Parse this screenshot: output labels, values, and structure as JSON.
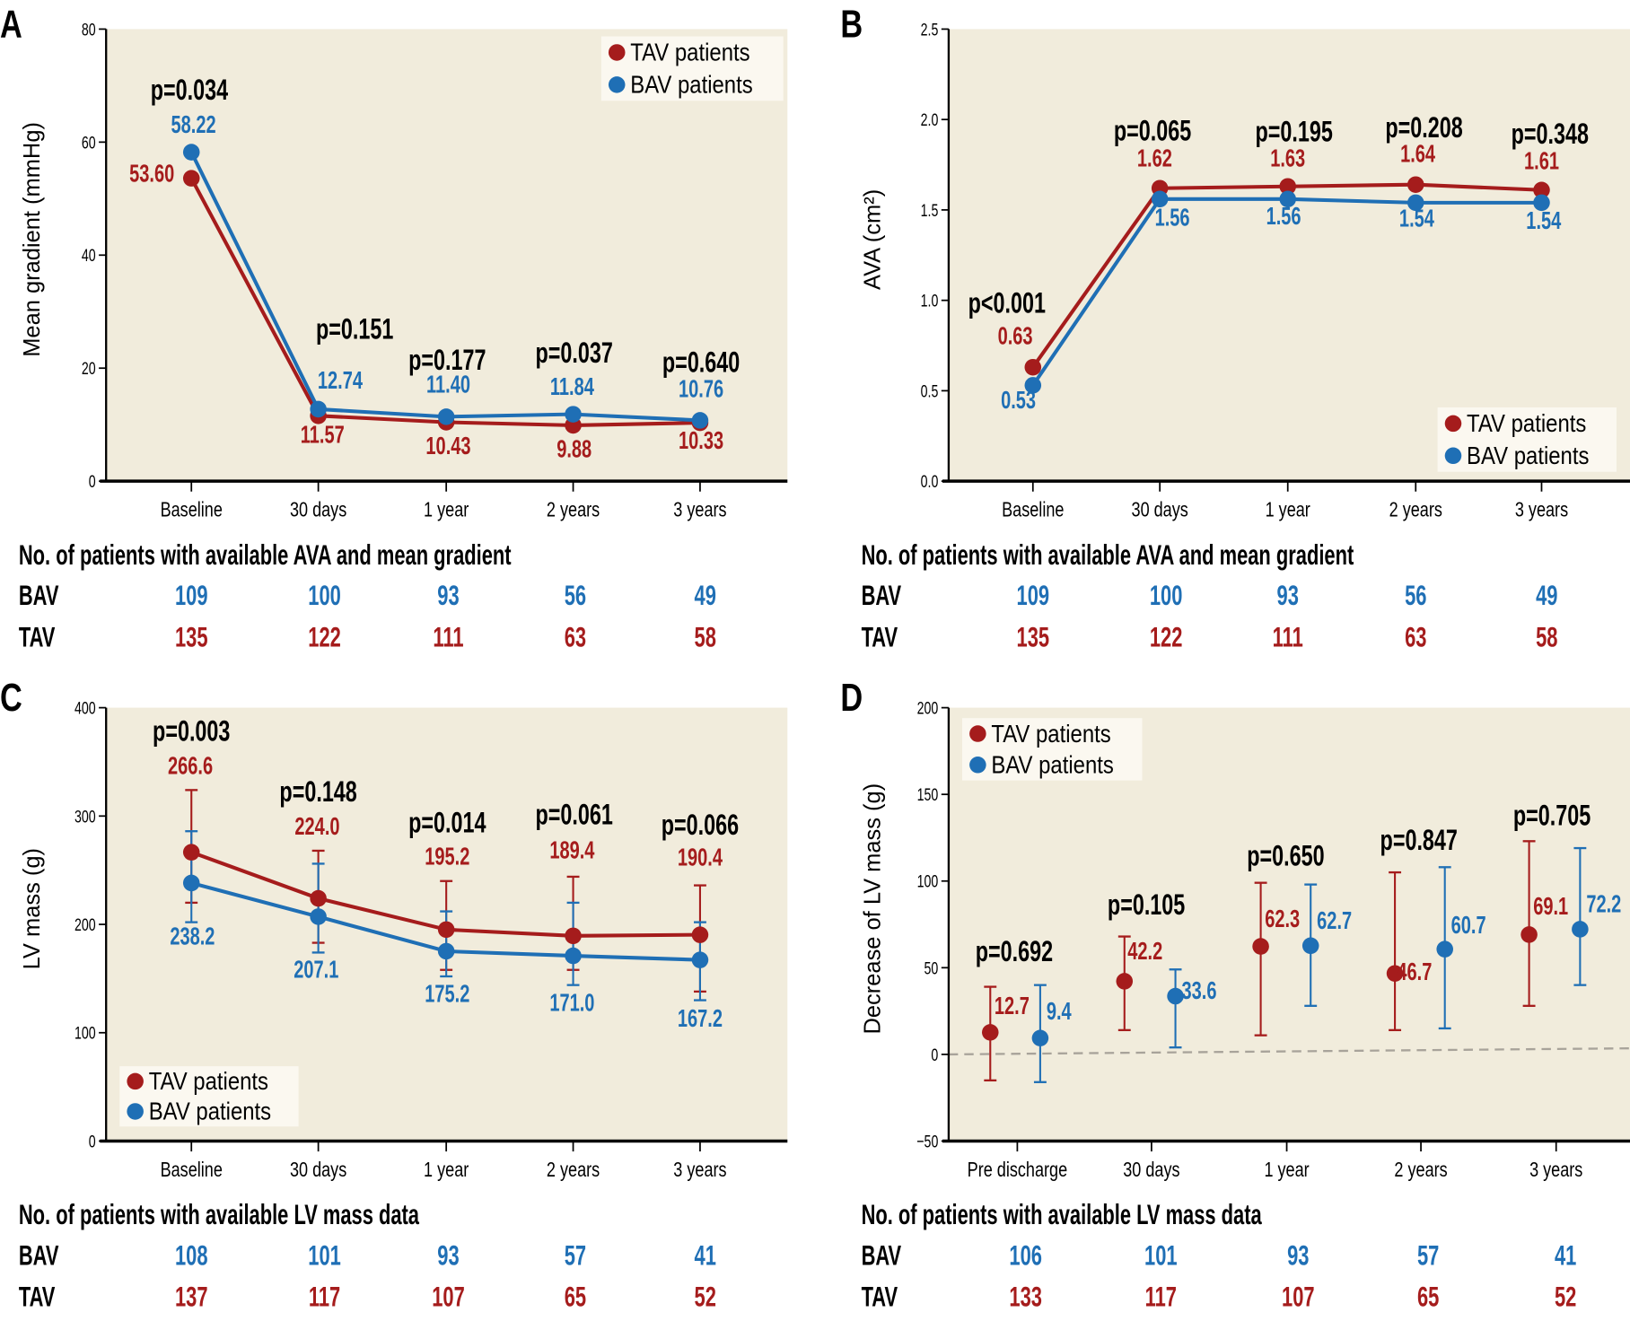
{
  "colors": {
    "tav": "#A51C1C",
    "bav": "#1F6FB5",
    "plot_bg": "#F1ECDC",
    "legend_bg": "#FBF8F0",
    "axis": "#000000",
    "zero_line": "#A8A39A",
    "text": "#000000"
  },
  "legend": {
    "tav_label": "TAV patients",
    "bav_label": "BAV patients"
  },
  "chart_data": [
    {
      "panel": "A",
      "type": "line",
      "title": "",
      "xlabel": "",
      "ylabel": "Mean gradient (mmHg)",
      "categories": [
        "Baseline",
        "30 days",
        "1 year",
        "2 years",
        "3 years"
      ],
      "ylim": [
        0,
        80
      ],
      "yticks": [
        0,
        20,
        40,
        60,
        80
      ],
      "ytick_labels": [
        "0",
        "20",
        "40",
        "60",
        "80"
      ],
      "legend_position": "top-right",
      "series": [
        {
          "name": "TAV patients",
          "key": "tav",
          "values": [
            53.6,
            11.57,
            10.43,
            9.88,
            10.33
          ],
          "labels": [
            "53.60",
            "11.57",
            "10.43",
            "9.88",
            "10.33"
          ]
        },
        {
          "name": "BAV patients",
          "key": "bav",
          "values": [
            58.22,
            12.74,
            11.4,
            11.84,
            10.76
          ],
          "labels": [
            "58.22",
            "12.74",
            "11.40",
            "11.84",
            "10.76"
          ]
        }
      ],
      "p_values": [
        "p=0.034",
        "p=0.151",
        "p=0.177",
        "p=0.037",
        "p=0.640"
      ],
      "table": {
        "title": "No. of patients with available AVA and mean gradient",
        "rows": [
          {
            "label": "BAV",
            "key": "bav",
            "values": [
              "109",
              "100",
              "93",
              "56",
              "49"
            ]
          },
          {
            "label": "TAV",
            "key": "tav",
            "values": [
              "135",
              "122",
              "111",
              "63",
              "58"
            ]
          }
        ]
      }
    },
    {
      "panel": "B",
      "type": "line",
      "title": "",
      "xlabel": "",
      "ylabel": "AVA (cm²)",
      "categories": [
        "Baseline",
        "30 days",
        "1 year",
        "2 years",
        "3 years"
      ],
      "ylim": [
        0,
        2.5
      ],
      "yticks": [
        0,
        0.5,
        1.0,
        1.5,
        2.0,
        2.5
      ],
      "ytick_labels": [
        "0.0",
        "0.5",
        "1.0",
        "1.5",
        "2.0",
        "2.5"
      ],
      "legend_position": "bottom-right",
      "series": [
        {
          "name": "TAV patients",
          "key": "tav",
          "values": [
            0.63,
            1.62,
            1.63,
            1.64,
            1.61
          ],
          "labels": [
            "0.63",
            "1.62",
            "1.63",
            "1.64",
            "1.61"
          ]
        },
        {
          "name": "BAV patients",
          "key": "bav",
          "values": [
            0.53,
            1.56,
            1.56,
            1.54,
            1.54
          ],
          "labels": [
            "0.53",
            "1.56",
            "1.56",
            "1.54",
            "1.54"
          ]
        }
      ],
      "p_values": [
        "p<0.001",
        "p=0.065",
        "p=0.195",
        "p=0.208",
        "p=0.348"
      ],
      "table": {
        "title": "No. of patients with available AVA and mean gradient",
        "rows": [
          {
            "label": "BAV",
            "key": "bav",
            "values": [
              "109",
              "100",
              "93",
              "56",
              "49"
            ]
          },
          {
            "label": "TAV",
            "key": "tav",
            "values": [
              "135",
              "122",
              "111",
              "63",
              "58"
            ]
          }
        ]
      }
    },
    {
      "panel": "C",
      "type": "line",
      "title": "",
      "xlabel": "",
      "ylabel": "LV mass (g)",
      "categories": [
        "Baseline",
        "30 days",
        "1 year",
        "2 years",
        "3 years"
      ],
      "ylim": [
        0,
        400
      ],
      "yticks": [
        0,
        100,
        200,
        300,
        400
      ],
      "ytick_labels": [
        "0",
        "100",
        "200",
        "300",
        "400"
      ],
      "legend_position": "bottom-left",
      "series": [
        {
          "name": "TAV patients",
          "key": "tav",
          "values": [
            266.6,
            224.0,
            195.2,
            189.4,
            190.4
          ],
          "labels": [
            "266.6",
            "224.0",
            "195.2",
            "189.4",
            "190.4"
          ],
          "err_low": [
            220,
            183,
            158,
            158,
            138
          ],
          "err_high": [
            324,
            268,
            240,
            244,
            236
          ]
        },
        {
          "name": "BAV patients",
          "key": "bav",
          "values": [
            238.2,
            207.1,
            175.2,
            171.0,
            167.2
          ],
          "labels": [
            "238.2",
            "207.1",
            "175.2",
            "171.0",
            "167.2"
          ],
          "err_low": [
            202,
            174,
            152,
            144,
            130
          ],
          "err_high": [
            286,
            256,
            212,
            220,
            202
          ]
        }
      ],
      "p_values": [
        "p=0.003",
        "p=0.148",
        "p=0.014",
        "p=0.061",
        "p=0.066"
      ],
      "table": {
        "title": "No. of patients with available LV mass data",
        "rows": [
          {
            "label": "BAV",
            "key": "bav",
            "values": [
              "108",
              "101",
              "93",
              "57",
              "41"
            ]
          },
          {
            "label": "TAV",
            "key": "tav",
            "values": [
              "137",
              "117",
              "107",
              "65",
              "52"
            ]
          }
        ]
      }
    },
    {
      "panel": "D",
      "type": "scatter",
      "title": "",
      "xlabel": "",
      "ylabel": "Decrease of LV mass (g)",
      "categories": [
        "Pre discharge",
        "30 days",
        "1 year",
        "2 years",
        "3 years"
      ],
      "ylim": [
        -50,
        200
      ],
      "yticks": [
        -50,
        0,
        50,
        100,
        150,
        200
      ],
      "ytick_labels": [
        "−50",
        "0",
        "50",
        "100",
        "150",
        "200"
      ],
      "legend_position": "top-left",
      "series": [
        {
          "name": "TAV patients",
          "key": "tav",
          "values": [
            12.7,
            42.2,
            62.3,
            46.7,
            69.1
          ],
          "labels": [
            "12.7",
            "42.2",
            "62.3",
            "46.7",
            "69.1"
          ],
          "err_low": [
            -15,
            14,
            11,
            14,
            28
          ],
          "err_high": [
            39,
            68,
            99,
            105,
            123
          ]
        },
        {
          "name": "BAV patients",
          "key": "bav",
          "values": [
            9.4,
            33.6,
            62.7,
            60.7,
            72.2
          ],
          "labels": [
            "9.4",
            "33.6",
            "62.7",
            "60.7",
            "72.2"
          ],
          "err_low": [
            -16,
            4,
            28,
            15,
            40
          ],
          "err_high": [
            40,
            49,
            98,
            108,
            119
          ]
        }
      ],
      "reference_line": {
        "y_start": 0,
        "y_end": 3.5,
        "style": "dashed"
      },
      "p_values": [
        "p=0.692",
        "p=0.105",
        "p=0.650",
        "p=0.847",
        "p=0.705"
      ],
      "table": {
        "title": "No. of patients with available LV mass data",
        "rows": [
          {
            "label": "BAV",
            "key": "bav",
            "values": [
              "106",
              "101",
              "93",
              "57",
              "41"
            ]
          },
          {
            "label": "TAV",
            "key": "tav",
            "values": [
              "133",
              "117",
              "107",
              "65",
              "52"
            ]
          }
        ]
      }
    }
  ]
}
